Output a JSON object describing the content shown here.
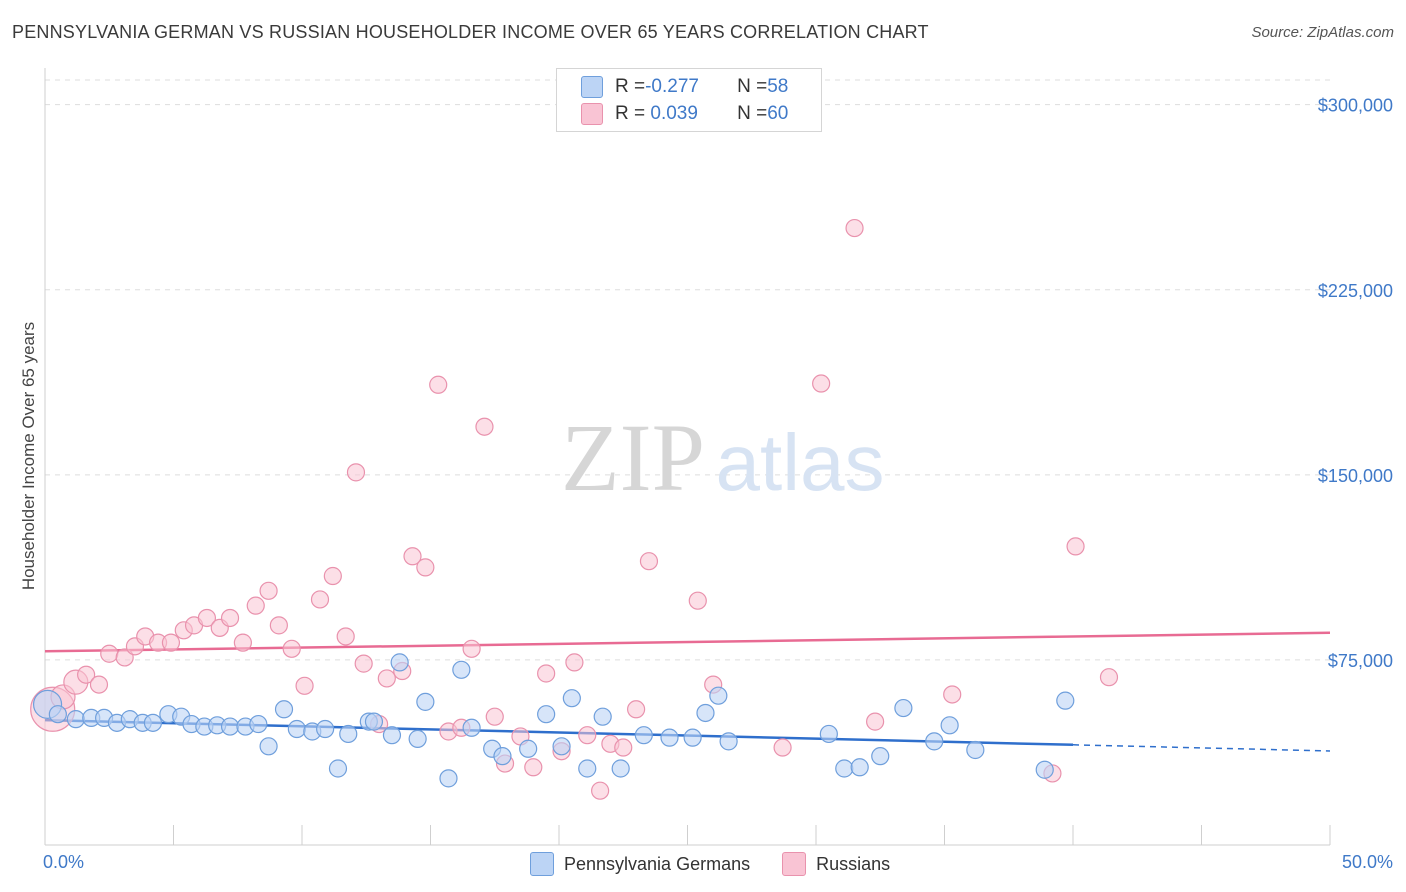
{
  "header": {
    "title": "PENNSYLVANIA GERMAN VS RUSSIAN HOUSEHOLDER INCOME OVER 65 YEARS CORRELATION CHART",
    "source": "Source: ZipAtlas.com"
  },
  "legend_top": {
    "rows": [
      {
        "r_label": "R = ",
        "r_value": "-0.277",
        "n_label": "N = ",
        "n_value": "58"
      },
      {
        "r_label": "R = ",
        "r_value": " 0.039",
        "n_label": "N = ",
        "n_value": "60"
      }
    ]
  },
  "colors": {
    "blue_fill": "#bcd4f5",
    "blue_stroke": "#6f9fdc",
    "blue_line": "#2f6fcc",
    "pink_fill": "#f9c4d4",
    "pink_stroke": "#e992ad",
    "pink_line": "#e86b93",
    "tick_label": "#3f79c8",
    "grid": "#dddddd"
  },
  "watermark": {
    "part1": "ZIP",
    "part2": "atlas"
  },
  "chart_data": {
    "type": "scatter",
    "title": "PENNSYLVANIA GERMAN VS RUSSIAN HOUSEHOLDER INCOME OVER 65 YEARS CORRELATION CHART",
    "xlabel": "",
    "ylabel": "Householder Income Over 65 years",
    "xlim": [
      0,
      50
    ],
    "ylim": [
      0,
      310000
    ],
    "x_tick_labels": [
      "0.0%",
      "50.0%"
    ],
    "y_ticks": [
      75000,
      150000,
      225000,
      300000
    ],
    "y_tick_labels": [
      "$75,000",
      "$150,000",
      "$225,000",
      "$300,000"
    ],
    "grid": true,
    "legend_position": "bottom",
    "series": [
      {
        "name": "Pennsylvania Germans",
        "r": -0.277,
        "n": 58,
        "trend": {
          "x0": 0,
          "y0": 50600,
          "x1": 40,
          "y1": 40600,
          "dashed_to_x": 50,
          "dashed_to_y": 38100
        },
        "points": [
          [
            0.1,
            57000
          ],
          [
            0.5,
            53000
          ],
          [
            1.2,
            51000
          ],
          [
            1.8,
            51500
          ],
          [
            2.3,
            51500
          ],
          [
            2.8,
            49500
          ],
          [
            3.3,
            51000
          ],
          [
            3.8,
            49500
          ],
          [
            4.2,
            49500
          ],
          [
            4.8,
            53000
          ],
          [
            5.3,
            52000
          ],
          [
            5.7,
            49000
          ],
          [
            6.2,
            48000
          ],
          [
            6.7,
            48500
          ],
          [
            7.2,
            48000
          ],
          [
            7.8,
            48000
          ],
          [
            8.3,
            49000
          ],
          [
            8.7,
            40000
          ],
          [
            9.3,
            55000
          ],
          [
            9.8,
            47000
          ],
          [
            10.4,
            46000
          ],
          [
            10.9,
            47000
          ],
          [
            11.4,
            31000
          ],
          [
            11.8,
            45000
          ],
          [
            12.6,
            50000
          ],
          [
            12.8,
            50000
          ],
          [
            13.5,
            44500
          ],
          [
            13.8,
            74000
          ],
          [
            14.5,
            43000
          ],
          [
            14.8,
            58000
          ],
          [
            15.7,
            27000
          ],
          [
            16.2,
            71000
          ],
          [
            16.6,
            47500
          ],
          [
            17.4,
            39000
          ],
          [
            17.8,
            36000
          ],
          [
            18.8,
            39000
          ],
          [
            19.5,
            53000
          ],
          [
            20.1,
            40000
          ],
          [
            20.5,
            59500
          ],
          [
            21.1,
            31000
          ],
          [
            21.7,
            52000
          ],
          [
            22.4,
            31000
          ],
          [
            23.3,
            44500
          ],
          [
            24.3,
            43500
          ],
          [
            25.2,
            43500
          ],
          [
            25.7,
            53500
          ],
          [
            26.2,
            60500
          ],
          [
            26.6,
            42000
          ],
          [
            30.5,
            45000
          ],
          [
            31.1,
            31000
          ],
          [
            31.7,
            31500
          ],
          [
            32.5,
            36000
          ],
          [
            33.4,
            55500
          ],
          [
            34.6,
            42000
          ],
          [
            35.2,
            48500
          ],
          [
            36.2,
            38500
          ],
          [
            38.9,
            30500
          ],
          [
            39.7,
            58500
          ]
        ]
      },
      {
        "name": "Russians",
        "r": 0.039,
        "n": 60,
        "trend": {
          "x0": 0,
          "y0": 78500,
          "x1": 50,
          "y1": 86000
        },
        "points": [
          [
            0.3,
            55000
          ],
          [
            0.7,
            60000
          ],
          [
            1.2,
            66000
          ],
          [
            1.6,
            69000
          ],
          [
            2.1,
            65000
          ],
          [
            2.5,
            77500
          ],
          [
            3.1,
            76000
          ],
          [
            3.5,
            80500
          ],
          [
            3.9,
            84500
          ],
          [
            4.4,
            82000
          ],
          [
            4.9,
            82000
          ],
          [
            5.4,
            87000
          ],
          [
            5.8,
            89000
          ],
          [
            6.3,
            92000
          ],
          [
            6.8,
            88000
          ],
          [
            7.2,
            92000
          ],
          [
            7.7,
            82000
          ],
          [
            8.2,
            97000
          ],
          [
            8.7,
            103000
          ],
          [
            9.1,
            89000
          ],
          [
            9.6,
            79500
          ],
          [
            10.1,
            64500
          ],
          [
            10.7,
            99500
          ],
          [
            11.2,
            109000
          ],
          [
            11.7,
            84500
          ],
          [
            12.1,
            151000
          ],
          [
            12.4,
            73500
          ],
          [
            13.0,
            49000
          ],
          [
            13.3,
            67500
          ],
          [
            13.9,
            70500
          ],
          [
            14.3,
            117000
          ],
          [
            14.8,
            112500
          ],
          [
            15.3,
            186500
          ],
          [
            15.7,
            46000
          ],
          [
            16.2,
            47500
          ],
          [
            16.6,
            79500
          ],
          [
            17.1,
            169500
          ],
          [
            17.5,
            52000
          ],
          [
            17.9,
            33000
          ],
          [
            18.5,
            44000
          ],
          [
            19.0,
            31500
          ],
          [
            19.5,
            69500
          ],
          [
            20.1,
            38000
          ],
          [
            20.6,
            74000
          ],
          [
            21.1,
            44500
          ],
          [
            21.6,
            22000
          ],
          [
            22.0,
            41000
          ],
          [
            22.5,
            39500
          ],
          [
            23.0,
            55000
          ],
          [
            23.5,
            115000
          ],
          [
            25.4,
            99000
          ],
          [
            26.0,
            65000
          ],
          [
            28.7,
            39500
          ],
          [
            30.2,
            187000
          ],
          [
            31.5,
            250000
          ],
          [
            32.3,
            50000
          ],
          [
            35.3,
            61000
          ],
          [
            39.2,
            29000
          ],
          [
            40.1,
            121000
          ],
          [
            41.4,
            68000
          ]
        ]
      }
    ]
  }
}
